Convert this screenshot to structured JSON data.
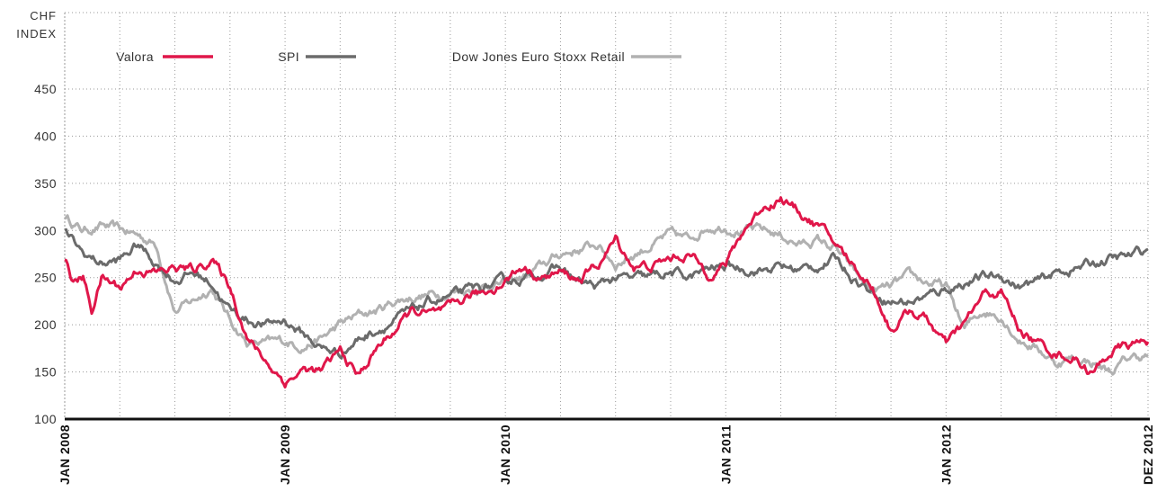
{
  "chart_data": {
    "type": "line",
    "ylabel_lines": [
      "CHF",
      "INDEX"
    ],
    "ylim": [
      100,
      450
    ],
    "yticks": [
      100,
      150,
      200,
      250,
      300,
      350,
      400,
      450
    ],
    "x_start": "2008-01",
    "x_end": "2012-12",
    "x_labels": [
      {
        "label": "JAN 2008",
        "month": "2008-01"
      },
      {
        "label": "JAN 2009",
        "month": "2009-01"
      },
      {
        "label": "JAN 2010",
        "month": "2010-01"
      },
      {
        "label": "JAN 2011",
        "month": "2011-01"
      },
      {
        "label": "JAN 2012",
        "month": "2012-01"
      },
      {
        "label": "DEZ 2012",
        "month": "2012-12"
      }
    ],
    "grid": true,
    "legend_position": "top-left",
    "series": [
      {
        "name": "Valora",
        "color": "#e0174a",
        "points": [
          [
            "2008-01",
            272
          ],
          [
            "2008-01-15",
            245
          ],
          [
            "2008-02",
            250
          ],
          [
            "2008-02-15",
            215
          ],
          [
            "2008-03",
            250
          ],
          [
            "2008-04",
            240
          ],
          [
            "2008-05",
            260
          ],
          [
            "2008-06",
            255
          ],
          [
            "2008-07",
            260
          ],
          [
            "2008-08",
            258
          ],
          [
            "2008-09",
            270
          ],
          [
            "2008-10",
            240
          ],
          [
            "2008-11",
            185
          ],
          [
            "2008-12",
            160
          ],
          [
            "2009-01",
            140
          ],
          [
            "2009-02",
            152
          ],
          [
            "2009-03",
            150
          ],
          [
            "2009-04",
            172
          ],
          [
            "2009-05",
            145
          ],
          [
            "2009-06",
            175
          ],
          [
            "2009-07",
            195
          ],
          [
            "2009-08",
            215
          ],
          [
            "2009-09",
            210
          ],
          [
            "2009-10",
            215
          ],
          [
            "2009-11",
            230
          ],
          [
            "2009-12",
            235
          ],
          [
            "2010-01",
            248
          ],
          [
            "2010-02",
            262
          ],
          [
            "2010-03",
            250
          ],
          [
            "2010-04",
            255
          ],
          [
            "2010-05",
            248
          ],
          [
            "2010-06",
            262
          ],
          [
            "2010-07",
            290
          ],
          [
            "2010-08",
            262
          ],
          [
            "2010-09",
            262
          ],
          [
            "2010-10",
            270
          ],
          [
            "2010-11",
            275
          ],
          [
            "2010-12",
            255
          ],
          [
            "2011-01",
            265
          ],
          [
            "2011-02",
            300
          ],
          [
            "2011-03",
            325
          ],
          [
            "2011-04",
            335
          ],
          [
            "2011-05",
            320
          ],
          [
            "2011-06",
            305
          ],
          [
            "2011-07",
            285
          ],
          [
            "2011-08",
            262
          ],
          [
            "2011-09",
            240
          ],
          [
            "2011-10",
            195
          ],
          [
            "2011-11",
            215
          ],
          [
            "2011-12",
            205
          ],
          [
            "2012-01",
            178
          ],
          [
            "2012-02",
            200
          ],
          [
            "2012-03",
            230
          ],
          [
            "2012-04",
            235
          ],
          [
            "2012-05",
            195
          ],
          [
            "2012-06",
            180
          ],
          [
            "2012-07",
            170
          ],
          [
            "2012-08",
            165
          ],
          [
            "2012-09",
            148
          ],
          [
            "2012-10",
            172
          ],
          [
            "2012-11",
            178
          ],
          [
            "2012-12",
            182
          ]
        ]
      },
      {
        "name": "SPI",
        "color": "#6b6b6b",
        "points": [
          [
            "2008-01",
            298
          ],
          [
            "2008-02",
            275
          ],
          [
            "2008-03",
            265
          ],
          [
            "2008-04",
            268
          ],
          [
            "2008-05",
            285
          ],
          [
            "2008-06",
            265
          ],
          [
            "2008-07",
            248
          ],
          [
            "2008-08",
            255
          ],
          [
            "2008-09",
            245
          ],
          [
            "2008-10",
            215
          ],
          [
            "2008-11",
            205
          ],
          [
            "2008-12",
            200
          ],
          [
            "2009-01",
            205
          ],
          [
            "2009-02",
            190
          ],
          [
            "2009-03",
            175
          ],
          [
            "2009-04",
            170
          ],
          [
            "2009-05",
            185
          ],
          [
            "2009-06",
            195
          ],
          [
            "2009-07",
            205
          ],
          [
            "2009-08",
            215
          ],
          [
            "2009-09",
            225
          ],
          [
            "2009-10",
            230
          ],
          [
            "2009-11",
            235
          ],
          [
            "2009-12",
            240
          ],
          [
            "2010-01",
            245
          ],
          [
            "2010-02",
            250
          ],
          [
            "2010-03",
            255
          ],
          [
            "2010-04",
            260
          ],
          [
            "2010-05",
            245
          ],
          [
            "2010-06",
            240
          ],
          [
            "2010-07",
            250
          ],
          [
            "2010-08",
            248
          ],
          [
            "2010-09",
            250
          ],
          [
            "2010-10",
            255
          ],
          [
            "2010-11",
            250
          ],
          [
            "2010-12",
            258
          ],
          [
            "2011-01",
            262
          ],
          [
            "2011-02",
            260
          ],
          [
            "2011-03",
            258
          ],
          [
            "2011-04",
            262
          ],
          [
            "2011-05",
            258
          ],
          [
            "2011-06",
            262
          ],
          [
            "2011-07",
            270
          ],
          [
            "2011-08",
            250
          ],
          [
            "2011-09",
            235
          ],
          [
            "2011-10",
            225
          ],
          [
            "2011-11",
            225
          ],
          [
            "2011-12",
            230
          ],
          [
            "2012-01",
            238
          ],
          [
            "2012-02",
            245
          ],
          [
            "2012-03",
            250
          ],
          [
            "2012-04",
            252
          ],
          [
            "2012-05",
            240
          ],
          [
            "2012-06",
            245
          ],
          [
            "2012-07",
            255
          ],
          [
            "2012-08",
            260
          ],
          [
            "2012-09",
            265
          ],
          [
            "2012-10",
            270
          ],
          [
            "2012-11",
            272
          ],
          [
            "2012-12",
            280
          ]
        ]
      },
      {
        "name": "Dow Jones Euro Stoxx Retail",
        "color": "#b1b1b1",
        "points": [
          [
            "2008-01",
            315
          ],
          [
            "2008-02",
            300
          ],
          [
            "2008-03",
            305
          ],
          [
            "2008-04",
            300
          ],
          [
            "2008-05",
            295
          ],
          [
            "2008-06",
            285
          ],
          [
            "2008-07",
            215
          ],
          [
            "2008-08",
            225
          ],
          [
            "2008-09",
            240
          ],
          [
            "2008-10",
            205
          ],
          [
            "2008-11",
            180
          ],
          [
            "2008-12",
            180
          ],
          [
            "2009-01",
            182
          ],
          [
            "2009-02",
            178
          ],
          [
            "2009-03",
            185
          ],
          [
            "2009-04",
            200
          ],
          [
            "2009-05",
            210
          ],
          [
            "2009-06",
            215
          ],
          [
            "2009-07",
            225
          ],
          [
            "2009-08",
            230
          ],
          [
            "2009-09",
            232
          ],
          [
            "2009-10",
            235
          ],
          [
            "2009-11",
            238
          ],
          [
            "2009-12",
            242
          ],
          [
            "2010-01",
            245
          ],
          [
            "2010-02",
            250
          ],
          [
            "2010-03",
            262
          ],
          [
            "2010-04",
            275
          ],
          [
            "2010-05",
            280
          ],
          [
            "2010-06",
            285
          ],
          [
            "2010-07",
            265
          ],
          [
            "2010-08",
            275
          ],
          [
            "2010-09",
            285
          ],
          [
            "2010-10",
            295
          ],
          [
            "2010-11",
            290
          ],
          [
            "2010-12",
            305
          ],
          [
            "2011-01",
            305
          ],
          [
            "2011-02",
            300
          ],
          [
            "2011-03",
            300
          ],
          [
            "2011-04",
            295
          ],
          [
            "2011-05",
            285
          ],
          [
            "2011-06",
            290
          ],
          [
            "2011-07",
            280
          ],
          [
            "2011-08",
            255
          ],
          [
            "2011-09",
            235
          ],
          [
            "2011-10",
            240
          ],
          [
            "2011-11",
            250
          ],
          [
            "2011-12",
            245
          ],
          [
            "2012-01",
            240
          ],
          [
            "2012-02",
            195
          ],
          [
            "2012-03",
            215
          ],
          [
            "2012-04",
            210
          ],
          [
            "2012-05",
            185
          ],
          [
            "2012-06",
            175
          ],
          [
            "2012-07",
            160
          ],
          [
            "2012-08",
            165
          ],
          [
            "2012-09",
            160
          ],
          [
            "2012-10",
            150
          ],
          [
            "2012-11",
            165
          ],
          [
            "2012-12",
            168
          ]
        ]
      }
    ]
  }
}
